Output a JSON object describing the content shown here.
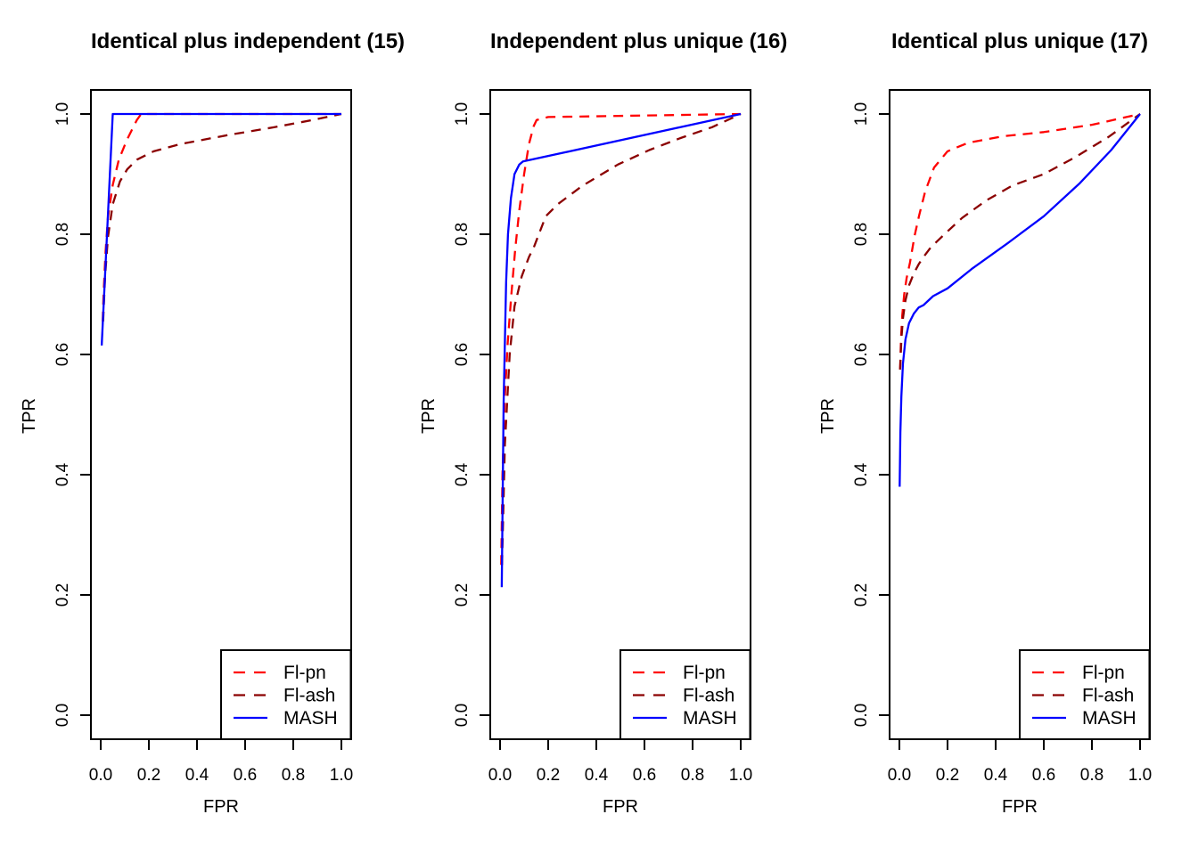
{
  "figure_name": "ROC comparison figure",
  "chart_data": [
    {
      "type": "line",
      "title": "Identical plus independent (15)",
      "xlabel": "FPR",
      "ylabel": "TPR",
      "xlim": [
        0,
        1
      ],
      "ylim": [
        0,
        1
      ],
      "grid": false,
      "x_tick_values": [
        0,
        0.2,
        0.4,
        0.6,
        0.8,
        1
      ],
      "x_tick_labels": [
        "0.0",
        "0.2",
        "0.4",
        "0.6",
        "0.8",
        "1.0"
      ],
      "y_tick_values": [
        0,
        0.2,
        0.4,
        0.6,
        0.8,
        1
      ],
      "y_tick_labels": [
        "0.0",
        "0.2",
        "0.4",
        "0.6",
        "0.8",
        "1.0"
      ],
      "legend_position": "bottomright",
      "series": [
        {
          "name": "Fl-pn",
          "color": "#FF0000",
          "line_style": "dashed",
          "points": [
            [
              0.008,
              0.655
            ],
            [
              0.012,
              0.7
            ],
            [
              0.02,
              0.77
            ],
            [
              0.03,
              0.828
            ],
            [
              0.05,
              0.882
            ],
            [
              0.075,
              0.924
            ],
            [
              0.11,
              0.958
            ],
            [
              0.15,
              0.99
            ],
            [
              0.168,
              1.0
            ],
            [
              1.0,
              1.0
            ]
          ]
        },
        {
          "name": "Fl-ash",
          "color": "#8B0000",
          "line_style": "dashed",
          "points": [
            [
              0.01,
              0.655
            ],
            [
              0.018,
              0.73
            ],
            [
              0.03,
              0.795
            ],
            [
              0.05,
              0.85
            ],
            [
              0.08,
              0.888
            ],
            [
              0.11,
              0.908
            ],
            [
              0.15,
              0.924
            ],
            [
              0.22,
              0.938
            ],
            [
              0.33,
              0.95
            ],
            [
              0.53,
              0.965
            ],
            [
              0.72,
              0.978
            ],
            [
              0.88,
              0.99
            ],
            [
              1.0,
              1.0
            ]
          ]
        },
        {
          "name": "MASH",
          "color": "#0000FF",
          "line_style": "solid",
          "points": [
            [
              0.004,
              0.615
            ],
            [
              0.05,
              1.0
            ],
            [
              1.0,
              1.0
            ]
          ]
        }
      ]
    },
    {
      "type": "line",
      "title": "Independent plus unique (16)",
      "xlabel": "FPR",
      "ylabel": "TPR",
      "xlim": [
        0,
        1
      ],
      "ylim": [
        0,
        1
      ],
      "grid": false,
      "x_tick_values": [
        0,
        0.2,
        0.4,
        0.6,
        0.8,
        1
      ],
      "x_tick_labels": [
        "0.0",
        "0.2",
        "0.4",
        "0.6",
        "0.8",
        "1.0"
      ],
      "y_tick_values": [
        0,
        0.2,
        0.4,
        0.6,
        0.8,
        1
      ],
      "y_tick_labels": [
        "0.0",
        "0.2",
        "0.4",
        "0.6",
        "0.8",
        "1.0"
      ],
      "legend_position": "bottomright",
      "series": [
        {
          "name": "Fl-pn",
          "color": "#FF0000",
          "line_style": "dashed",
          "points": [
            [
              0.005,
              0.25
            ],
            [
              0.01,
              0.4
            ],
            [
              0.02,
              0.53
            ],
            [
              0.032,
              0.62
            ],
            [
              0.047,
              0.7
            ],
            [
              0.063,
              0.775
            ],
            [
              0.08,
              0.84
            ],
            [
              0.1,
              0.9
            ],
            [
              0.12,
              0.95
            ],
            [
              0.14,
              0.98
            ],
            [
              0.152,
              0.99
            ],
            [
              0.2,
              0.995
            ],
            [
              1.0,
              1.0
            ]
          ]
        },
        {
          "name": "Fl-ash",
          "color": "#8B0000",
          "line_style": "dashed",
          "points": [
            [
              0.008,
              0.25
            ],
            [
              0.02,
              0.45
            ],
            [
              0.04,
              0.6
            ],
            [
              0.06,
              0.68
            ],
            [
              0.09,
              0.73
            ],
            [
              0.12,
              0.762
            ],
            [
              0.14,
              0.778
            ],
            [
              0.19,
              0.83
            ],
            [
              0.24,
              0.85
            ],
            [
              0.34,
              0.88
            ],
            [
              0.49,
              0.916
            ],
            [
              0.62,
              0.94
            ],
            [
              0.75,
              0.96
            ],
            [
              0.88,
              0.978
            ],
            [
              1.0,
              1.0
            ]
          ]
        },
        {
          "name": "MASH",
          "color": "#0000FF",
          "line_style": "solid",
          "points": [
            [
              0.007,
              0.213
            ],
            [
              0.015,
              0.52
            ],
            [
              0.025,
              0.72
            ],
            [
              0.033,
              0.8
            ],
            [
              0.045,
              0.86
            ],
            [
              0.06,
              0.9
            ],
            [
              0.08,
              0.916
            ],
            [
              0.095,
              0.921
            ],
            [
              1.0,
              1.0
            ]
          ]
        }
      ]
    },
    {
      "type": "line",
      "title": "Identical plus unique (17)",
      "xlabel": "FPR",
      "ylabel": "TPR",
      "xlim": [
        0,
        1
      ],
      "ylim": [
        0,
        1
      ],
      "grid": false,
      "x_tick_values": [
        0,
        0.2,
        0.4,
        0.6,
        0.8,
        1
      ],
      "x_tick_labels": [
        "0.0",
        "0.2",
        "0.4",
        "0.6",
        "0.8",
        "1.0"
      ],
      "y_tick_values": [
        0,
        0.2,
        0.4,
        0.6,
        0.8,
        1
      ],
      "y_tick_labels": [
        "0.0",
        "0.2",
        "0.4",
        "0.6",
        "0.8",
        "1.0"
      ],
      "legend_position": "bottomright",
      "series": [
        {
          "name": "Fl-pn",
          "color": "#FF0000",
          "line_style": "dashed",
          "points": [
            [
              0.003,
              0.575
            ],
            [
              0.007,
              0.63
            ],
            [
              0.012,
              0.665
            ],
            [
              0.02,
              0.7
            ],
            [
              0.03,
              0.727
            ],
            [
              0.044,
              0.753
            ],
            [
              0.063,
              0.797
            ],
            [
              0.082,
              0.831
            ],
            [
              0.107,
              0.871
            ],
            [
              0.144,
              0.911
            ],
            [
              0.2,
              0.938
            ],
            [
              0.285,
              0.952
            ],
            [
              0.43,
              0.963
            ],
            [
              0.6,
              0.97
            ],
            [
              0.8,
              0.982
            ],
            [
              1.0,
              1.0
            ]
          ]
        },
        {
          "name": "Fl-ash",
          "color": "#8B0000",
          "line_style": "dashed",
          "points": [
            [
              0.003,
              0.575
            ],
            [
              0.008,
              0.625
            ],
            [
              0.015,
              0.66
            ],
            [
              0.025,
              0.69
            ],
            [
              0.04,
              0.715
            ],
            [
              0.06,
              0.735
            ],
            [
              0.08,
              0.75
            ],
            [
              0.1,
              0.762
            ],
            [
              0.13,
              0.778
            ],
            [
              0.19,
              0.801
            ],
            [
              0.26,
              0.827
            ],
            [
              0.36,
              0.856
            ],
            [
              0.47,
              0.881
            ],
            [
              0.6,
              0.9
            ],
            [
              0.73,
              0.928
            ],
            [
              0.87,
              0.962
            ],
            [
              1.0,
              1.0
            ]
          ]
        },
        {
          "name": "MASH",
          "color": "#0000FF",
          "line_style": "solid",
          "points": [
            [
              0.001,
              0.38
            ],
            [
              0.004,
              0.47
            ],
            [
              0.008,
              0.53
            ],
            [
              0.015,
              0.585
            ],
            [
              0.025,
              0.625
            ],
            [
              0.04,
              0.652
            ],
            [
              0.06,
              0.668
            ],
            [
              0.08,
              0.678
            ],
            [
              0.1,
              0.682
            ],
            [
              0.14,
              0.697
            ],
            [
              0.2,
              0.71
            ],
            [
              0.3,
              0.742
            ],
            [
              0.45,
              0.785
            ],
            [
              0.6,
              0.83
            ],
            [
              0.75,
              0.885
            ],
            [
              0.88,
              0.94
            ],
            [
              1.0,
              1.0
            ]
          ]
        }
      ]
    }
  ]
}
